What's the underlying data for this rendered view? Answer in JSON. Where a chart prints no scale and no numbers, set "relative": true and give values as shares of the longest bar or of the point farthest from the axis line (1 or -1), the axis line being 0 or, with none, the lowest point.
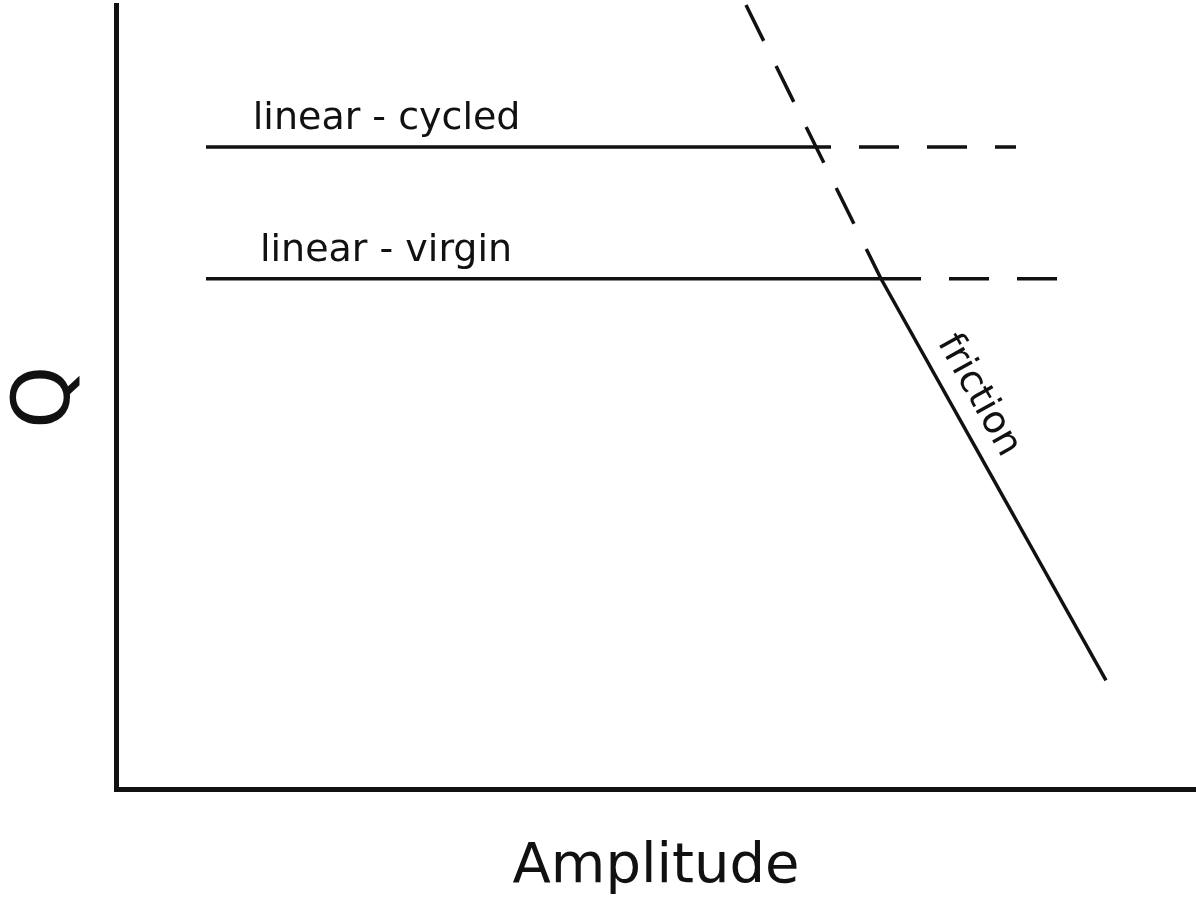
{
  "chart_data": {
    "type": "line",
    "relative": true,
    "xlabel": "Amplitude",
    "ylabel": "Q",
    "grid": false,
    "legend": false,
    "marker": "none",
    "categories": [
      null,
      null,
      null,
      null,
      null,
      null,
      null,
      null,
      null,
      null,
      null,
      null,
      null,
      null,
      null,
      null,
      null,
      null,
      null,
      null,
      null,
      null,
      null,
      null,
      null
    ],
    "series": [
      {
        "name": "linear - cycled",
        "color": "#111111",
        "line_style": "solid",
        "values": [
          null,
          null,
          0.819,
          null,
          null,
          null,
          null,
          null,
          null,
          null,
          null,
          null,
          null,
          null,
          null,
          0.819,
          null,
          null,
          null,
          null,
          null,
          null,
          null,
          null,
          null
        ]
      },
      {
        "color": "#111111",
        "line_style": "dashed",
        "values": [
          null,
          null,
          null,
          null,
          null,
          null,
          null,
          null,
          null,
          null,
          null,
          null,
          null,
          null,
          null,
          0.819,
          null,
          null,
          null,
          null,
          0.819,
          null,
          null,
          null,
          null
        ]
      },
      {
        "name": "linear - virgin",
        "color": "#111111",
        "line_style": "solid",
        "values": [
          null,
          null,
          0.651,
          null,
          null,
          null,
          null,
          null,
          null,
          null,
          null,
          null,
          null,
          null,
          null,
          null,
          null,
          0.651,
          null,
          null,
          null,
          null,
          null,
          null,
          null
        ]
      },
      {
        "color": "#111111",
        "line_style": "dashed",
        "values": [
          null,
          null,
          null,
          null,
          null,
          null,
          null,
          null,
          null,
          null,
          null,
          null,
          null,
          null,
          null,
          null,
          null,
          0.651,
          null,
          null,
          null,
          0.651,
          null,
          null,
          null
        ]
      },
      {
        "color": "#111111",
        "line_style": "dashed",
        "values": [
          null,
          null,
          null,
          null,
          null,
          null,
          null,
          null,
          null,
          null,
          null,
          null,
          null,
          null,
          1,
          null,
          null,
          0.651,
          null,
          null,
          null,
          null,
          null,
          null,
          null
        ]
      },
      {
        "name": "friction",
        "color": "#111111",
        "line_style": "solid",
        "values": [
          null,
          null,
          null,
          null,
          null,
          null,
          null,
          null,
          null,
          null,
          null,
          null,
          null,
          null,
          null,
          null,
          null,
          0.651,
          null,
          null,
          null,
          null,
          0.139,
          null,
          null
        ]
      }
    ]
  }
}
